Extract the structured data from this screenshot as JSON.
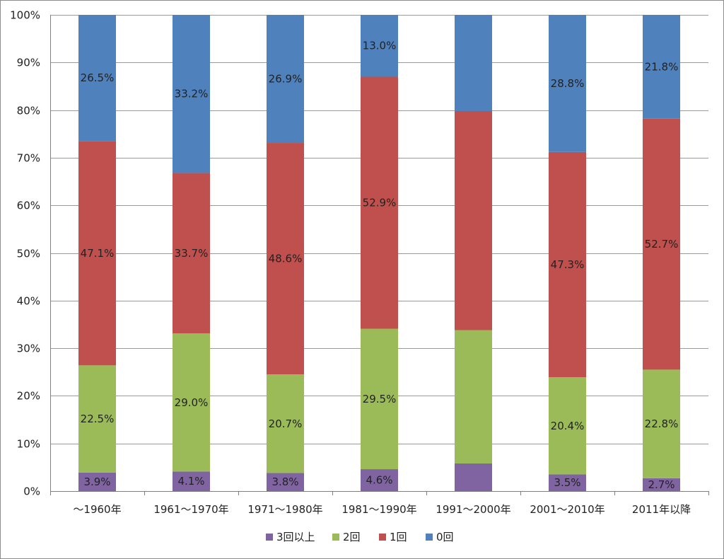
{
  "chart_data": {
    "type": "bar",
    "stacked": true,
    "percent": true,
    "categories": [
      "～1960年",
      "1961～1970年",
      "1971～1980年",
      "1981～1990年",
      "1991～2000年",
      "2001～2010年",
      "2011年以降"
    ],
    "ylim": [
      0,
      100
    ],
    "yticks": [
      "0%",
      "10%",
      "20%",
      "30%",
      "40%",
      "50%",
      "60%",
      "70%",
      "80%",
      "90%",
      "100%"
    ],
    "grid": true,
    "legend_position": "bottom",
    "series": [
      {
        "name": "3回以上",
        "color": "#8064a2",
        "values": [
          3.9,
          4.1,
          3.8,
          4.6,
          5.8,
          3.5,
          2.7
        ],
        "labels": [
          "3.9%",
          "4.1%",
          "3.8%",
          "4.6%",
          "",
          "3.5%",
          "2.7%"
        ]
      },
      {
        "name": "2回",
        "color": "#9bbb59",
        "values": [
          22.5,
          29.0,
          20.7,
          29.5,
          28.0,
          20.4,
          22.8
        ],
        "labels": [
          "22.5%",
          "29.0%",
          "20.7%",
          "29.5%",
          "",
          "20.4%",
          "22.8%"
        ]
      },
      {
        "name": "1回",
        "color": "#c0504d",
        "values": [
          47.1,
          33.7,
          48.6,
          52.9,
          46.0,
          47.3,
          52.7
        ],
        "labels": [
          "47.1%",
          "33.7%",
          "48.6%",
          "52.9%",
          "",
          "47.3%",
          "52.7%"
        ]
      },
      {
        "name": "0回",
        "color": "#4f81bd",
        "values": [
          26.5,
          33.2,
          26.9,
          13.0,
          20.2,
          28.8,
          21.8
        ],
        "labels": [
          "26.5%",
          "33.2%",
          "26.9%",
          "13.0%",
          "",
          "28.8%",
          "21.8%"
        ]
      }
    ]
  }
}
